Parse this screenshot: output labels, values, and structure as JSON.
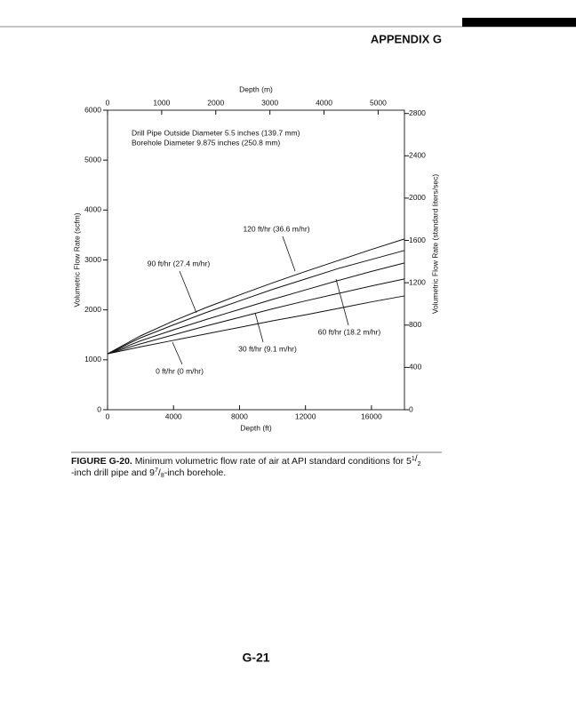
{
  "page": {
    "header": "APPENDIX G",
    "page_number": "G-21",
    "caption": {
      "label": "FIGURE G-20.",
      "text1": "Minimum volumetric flow rate of air at API standard conditions for 5",
      "sup1": "1",
      "slash1": "/",
      "sub1": "2",
      "text2": "-inch drill pipe and 9",
      "sup2": "7",
      "slash2": "/",
      "sub2": "8",
      "text3": "-inch borehole."
    }
  },
  "chart_data": {
    "type": "line",
    "x_label": "Depth (ft)",
    "x2_label": "Depth (m)",
    "y_label": "Volumetric Flow Rate (scfm)",
    "y2_label": "Volumetric Flow Rate (standard liters/sec)",
    "annotations": [
      "Drill Pipe Outside Diameter 5.5 inches (139.7 mm)",
      "Borehole Diameter 9.875 inches (250.8 mm)"
    ],
    "x": [
      0,
      2000,
      4000,
      6000,
      8000,
      10000,
      12000,
      14000,
      16000,
      18000
    ],
    "xlim": [
      0,
      18000
    ],
    "xticks": [
      0,
      4000,
      8000,
      12000,
      16000
    ],
    "x2lim": [
      0,
      5486
    ],
    "x2ticks": [
      0,
      1000,
      2000,
      3000,
      4000,
      5000
    ],
    "ylim": [
      0,
      6000
    ],
    "yticks": [
      0,
      1000,
      2000,
      3000,
      4000,
      5000,
      6000
    ],
    "y2lim": [
      0,
      2831
    ],
    "y2ticks": [
      0,
      400,
      800,
      1200,
      1600,
      2000,
      2400,
      2800
    ],
    "grid": false,
    "series": [
      {
        "name": "120 ft/hr (36.6 m/hr)",
        "color": "#111111",
        "values": [
          1120,
          1480,
          1780,
          2050,
          2300,
          2540,
          2770,
          2990,
          3210,
          3420
        ]
      },
      {
        "name": "90 ft/hr (27.4 m/hr)",
        "color": "#111111",
        "values": [
          1120,
          1440,
          1700,
          1950,
          2180,
          2410,
          2620,
          2830,
          3010,
          3190
        ]
      },
      {
        "name": "60 ft/hr (18.2 m/hr)",
        "color": "#111111",
        "values": [
          1120,
          1380,
          1600,
          1810,
          2010,
          2210,
          2400,
          2590,
          2770,
          2940
        ]
      },
      {
        "name": "30 ft/hr (9.1 m/hr)",
        "color": "#111111",
        "values": [
          1120,
          1320,
          1500,
          1680,
          1850,
          2020,
          2180,
          2330,
          2480,
          2620
        ]
      },
      {
        "name": "0 ft/hr (0 m/hr)",
        "color": "#111111",
        "values": [
          1120,
          1260,
          1390,
          1520,
          1650,
          1780,
          1900,
          2030,
          2160,
          2280
        ]
      }
    ]
  }
}
